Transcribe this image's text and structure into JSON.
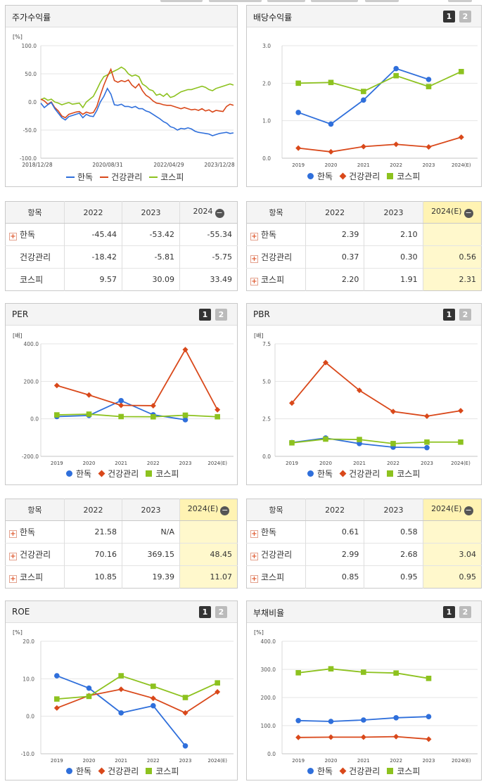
{
  "colors": {
    "hanok": "#2f6fdb",
    "health": "#d9481a",
    "kospi": "#8dc21f"
  },
  "legend_labels": [
    "한독",
    "건강관리",
    "코스피"
  ],
  "panels": {
    "price_return": {
      "title": "주가수익률",
      "unit": "[%]"
    },
    "dividend": {
      "title": "배당수익률",
      "btn1": "1",
      "btn2": "2"
    },
    "per": {
      "title": "PER",
      "unit": "[배]",
      "btn1": "1",
      "btn2": "2"
    },
    "pbr": {
      "title": "PBR",
      "unit": "[배]",
      "btn1": "1",
      "btn2": "2"
    },
    "roe": {
      "title": "ROE",
      "unit": "[%]",
      "btn1": "1",
      "btn2": "2"
    },
    "debt": {
      "title": "부채비율",
      "unit": "[%]",
      "btn1": "1",
      "btn2": "2"
    }
  },
  "tables": {
    "price_return": {
      "headers": [
        "항목",
        "2022",
        "2023",
        "2024"
      ],
      "rows": [
        {
          "name": "한독",
          "expand": true,
          "values": [
            "-45.44",
            "-53.42",
            "-55.34"
          ]
        },
        {
          "name": "건강관리",
          "expand": false,
          "values": [
            "-18.42",
            "-5.81",
            "-5.75"
          ]
        },
        {
          "name": "코스피",
          "expand": false,
          "values": [
            "9.57",
            "30.09",
            "33.49"
          ]
        }
      ]
    },
    "dividend": {
      "headers": [
        "항목",
        "2022",
        "2023",
        "2024(E)"
      ],
      "rows": [
        {
          "name": "한독",
          "expand": true,
          "values": [
            "2.39",
            "2.10",
            ""
          ]
        },
        {
          "name": "건강관리",
          "expand": true,
          "values": [
            "0.37",
            "0.30",
            "0.56"
          ]
        },
        {
          "name": "코스피",
          "expand": true,
          "values": [
            "2.20",
            "1.91",
            "2.31"
          ]
        }
      ]
    },
    "per": {
      "headers": [
        "항목",
        "2022",
        "2023",
        "2024(E)"
      ],
      "rows": [
        {
          "name": "한독",
          "expand": true,
          "values": [
            "21.58",
            "N/A",
            ""
          ]
        },
        {
          "name": "건강관리",
          "expand": true,
          "values": [
            "70.16",
            "369.15",
            "48.45"
          ]
        },
        {
          "name": "코스피",
          "expand": true,
          "values": [
            "10.85",
            "19.39",
            "11.07"
          ]
        }
      ]
    },
    "pbr": {
      "headers": [
        "항목",
        "2022",
        "2023",
        "2024(E)"
      ],
      "rows": [
        {
          "name": "한독",
          "expand": true,
          "values": [
            "0.61",
            "0.58",
            ""
          ]
        },
        {
          "name": "건강관리",
          "expand": true,
          "values": [
            "2.99",
            "2.68",
            "3.04"
          ]
        },
        {
          "name": "코스피",
          "expand": true,
          "values": [
            "0.85",
            "0.95",
            "0.95"
          ]
        }
      ]
    }
  },
  "chart_data": [
    {
      "id": "price_return",
      "type": "line",
      "ylim": [
        -100,
        100
      ],
      "yticks": [
        "100.0",
        "50.0",
        "0.0",
        "-50.0",
        "-100.0"
      ],
      "x_labels": [
        "2018/12/28",
        "2020/08/31",
        "2022/04/29",
        "2023/12/28"
      ],
      "series": [
        {
          "name": "한독",
          "values": [
            -2,
            -10,
            -5,
            -1,
            -12,
            -20,
            -28,
            -32,
            -26,
            -24,
            -22,
            -20,
            -28,
            -22,
            -25,
            -26,
            -15,
            0,
            10,
            24,
            14,
            -5,
            -6,
            -4,
            -8,
            -8,
            -10,
            -8,
            -12,
            -12,
            -16,
            -18,
            -22,
            -26,
            -30,
            -35,
            -38,
            -44,
            -46,
            -50,
            -47,
            -48,
            -46,
            -48,
            -52,
            -54,
            -55,
            -56,
            -57,
            -60,
            -58,
            -56,
            -55,
            -54,
            -56,
            -55
          ]
        },
        {
          "name": "건강관리",
          "values": [
            5,
            2,
            -4,
            0,
            -10,
            -16,
            -25,
            -28,
            -22,
            -20,
            -18,
            -17,
            -22,
            -18,
            -20,
            -19,
            -8,
            12,
            30,
            45,
            58,
            38,
            35,
            38,
            36,
            39,
            30,
            25,
            32,
            20,
            12,
            8,
            2,
            -2,
            -3,
            -5,
            -6,
            -6,
            -8,
            -10,
            -12,
            -10,
            -12,
            -14,
            -13,
            -15,
            -12,
            -16,
            -14,
            -18,
            -15,
            -16,
            -17,
            -8,
            -4,
            -6
          ]
        },
        {
          "name": "코스피",
          "values": [
            4,
            7,
            3,
            5,
            0,
            -2,
            -5,
            -3,
            -1,
            -4,
            -3,
            -2,
            -10,
            0,
            5,
            10,
            22,
            35,
            45,
            48,
            52,
            55,
            58,
            62,
            58,
            50,
            46,
            48,
            45,
            32,
            28,
            22,
            20,
            12,
            14,
            10,
            15,
            8,
            10,
            14,
            18,
            20,
            22,
            22,
            24,
            26,
            28,
            26,
            22,
            20,
            24,
            26,
            28,
            30,
            32,
            30
          ]
        }
      ]
    },
    {
      "id": "dividend",
      "type": "line",
      "ylim": [
        0,
        3
      ],
      "yticks": [
        "3.0",
        "2.0",
        "1.0",
        "0.0"
      ],
      "categories": [
        "2019",
        "2020",
        "2021",
        "2022",
        "2023",
        "2024(E)"
      ],
      "series": [
        {
          "name": "한독",
          "values": [
            1.22,
            0.91,
            1.55,
            2.39,
            2.1,
            null
          ]
        },
        {
          "name": "건강관리",
          "values": [
            0.27,
            0.17,
            0.31,
            0.37,
            0.3,
            0.56
          ]
        },
        {
          "name": "코스피",
          "values": [
            2.0,
            2.02,
            1.78,
            2.2,
            1.91,
            2.31
          ]
        }
      ]
    },
    {
      "id": "per",
      "type": "line",
      "ylim": [
        -200,
        400
      ],
      "yticks": [
        "400.0",
        "200.0",
        "0.0",
        "-200.0"
      ],
      "categories": [
        "2019",
        "2020",
        "2021",
        "2022",
        "2023",
        "2024(E)"
      ],
      "series": [
        {
          "name": "한독",
          "values": [
            12,
            18,
            97,
            21.58,
            -5,
            null
          ]
        },
        {
          "name": "건강관리",
          "values": [
            178,
            127,
            72,
            70.16,
            369.15,
            48.45
          ]
        },
        {
          "name": "코스피",
          "values": [
            21,
            25,
            12,
            10.85,
            19.39,
            11.07
          ]
        }
      ]
    },
    {
      "id": "pbr",
      "type": "line",
      "ylim": [
        0,
        7.5
      ],
      "yticks": [
        "7.5",
        "5.0",
        "2.5",
        "0.0"
      ],
      "categories": [
        "2019",
        "2020",
        "2021",
        "2022",
        "2023",
        "2024(E)"
      ],
      "series": [
        {
          "name": "한독",
          "values": [
            0.92,
            1.22,
            0.85,
            0.61,
            0.58,
            null
          ]
        },
        {
          "name": "건강관리",
          "values": [
            3.55,
            6.25,
            4.4,
            2.99,
            2.68,
            3.04
          ]
        },
        {
          "name": "코스피",
          "values": [
            0.9,
            1.15,
            1.12,
            0.85,
            0.95,
            0.95
          ]
        }
      ]
    },
    {
      "id": "roe",
      "type": "line",
      "ylim": [
        -10,
        20
      ],
      "yticks": [
        "20.0",
        "10.0",
        "0.0",
        "-10.0"
      ],
      "categories": [
        "2019",
        "2020",
        "2021",
        "2022",
        "2023",
        "2024(E)"
      ],
      "series": [
        {
          "name": "한독",
          "values": [
            10.8,
            7.5,
            0.9,
            2.8,
            -7.9,
            null
          ]
        },
        {
          "name": "건강관리",
          "values": [
            2.2,
            5.5,
            7.2,
            4.8,
            0.9,
            6.5
          ]
        },
        {
          "name": "코스피",
          "values": [
            4.6,
            5.3,
            10.8,
            8.0,
            5.0,
            8.9
          ]
        }
      ]
    },
    {
      "id": "debt",
      "type": "line",
      "ylim": [
        0,
        400
      ],
      "yticks": [
        "400.0",
        "300.0",
        "200.0",
        "100.0",
        "0.0"
      ],
      "categories": [
        "2019",
        "2020",
        "2021",
        "2022",
        "2023",
        "2024(E)"
      ],
      "series": [
        {
          "name": "한독",
          "values": [
            118,
            115,
            120,
            128,
            132,
            null
          ]
        },
        {
          "name": "건강관리",
          "values": [
            58,
            59,
            59,
            61,
            52,
            null
          ]
        },
        {
          "name": "코스피",
          "values": [
            288,
            302,
            290,
            287,
            268,
            null
          ]
        }
      ]
    }
  ]
}
